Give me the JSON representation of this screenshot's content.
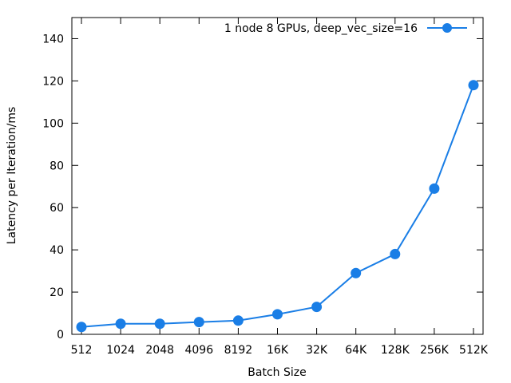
{
  "chart_data": {
    "type": "line",
    "categories": [
      "512",
      "1024",
      "2048",
      "4096",
      "8192",
      "16K",
      "32K",
      "64K",
      "128K",
      "256K",
      "512K"
    ],
    "series": [
      {
        "name": "1 node 8 GPUs, deep_vec_size=16",
        "values": [
          3.5,
          5,
          5,
          5.8,
          6.5,
          9.5,
          13,
          29,
          38,
          69,
          118
        ],
        "color": "#1a7ee6"
      }
    ],
    "xlabel": "Batch Size",
    "ylabel": "Latency per Iteration/ms",
    "ylim": [
      0,
      150
    ],
    "yticks": [
      0,
      20,
      40,
      60,
      80,
      100,
      120,
      140
    ],
    "grid": false,
    "legend": "top-right"
  }
}
